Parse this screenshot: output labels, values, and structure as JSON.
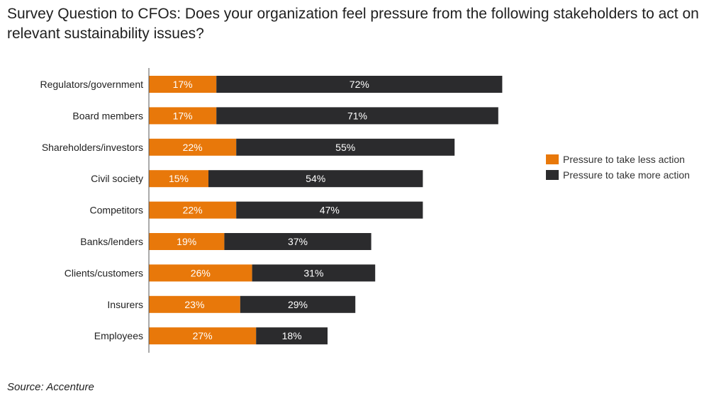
{
  "title": "Survey Question to CFOs: Does your organization feel pressure from the following stakeholders to act on relevant sustainability issues?",
  "source": "Source: Accenture",
  "chart_data": {
    "type": "bar",
    "orientation": "horizontal",
    "stacked": true,
    "categories": [
      "Regulators/government",
      "Board members",
      "Shareholders/investors",
      "Civil society",
      "Competitors",
      "Banks/lenders",
      "Clients/customers",
      "Insurers",
      "Employees"
    ],
    "series": [
      {
        "name": "Pressure to take less action",
        "color": "#E8780A",
        "values": [
          17,
          17,
          22,
          15,
          22,
          19,
          26,
          23,
          27
        ],
        "labels": [
          "17%",
          "17%",
          "22%",
          "15%",
          "22%",
          "19%",
          "26%",
          "23%",
          "27%"
        ]
      },
      {
        "name": "Pressure to take more action",
        "color": "#2B2B2D",
        "values": [
          72,
          71,
          55,
          54,
          47,
          37,
          31,
          29,
          18
        ],
        "labels": [
          "72%",
          "71%",
          "55%",
          "54%",
          "47%",
          "37%",
          "31%",
          "29%",
          "18%"
        ]
      }
    ],
    "legend_position": "right",
    "grid": false
  }
}
